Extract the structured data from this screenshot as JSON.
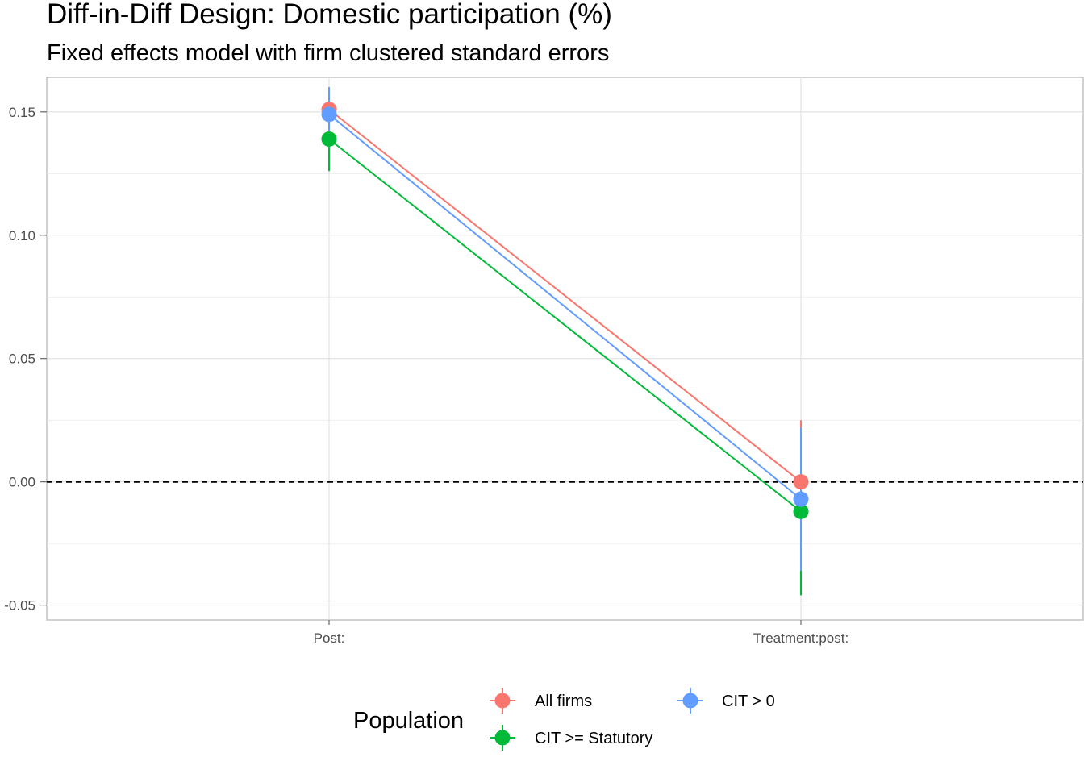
{
  "chart_data": {
    "type": "scatter",
    "title": "Diff-in-Diff Design: Domestic participation (%)",
    "subtitle": "Fixed effects model with firm clustered standard errors",
    "xlabel": "",
    "ylabel": "",
    "categories": [
      "Post:",
      "Treatment:post:"
    ],
    "ylim": [
      -0.056,
      0.164
    ],
    "yticks": [
      -0.05,
      0.0,
      0.05,
      0.1,
      0.15
    ],
    "ytick_labels": [
      "-0.05",
      "0.00",
      "0.05",
      "0.10",
      "0.15"
    ],
    "grid": true,
    "reference_line": {
      "y": 0,
      "style": "dashed",
      "color": "#000000"
    },
    "legend": {
      "title": "Population",
      "position": "bottom",
      "entries": [
        "All firms",
        "CIT > 0",
        "CIT >= Statutory"
      ]
    },
    "series": [
      {
        "name": "All firms",
        "color": "#F8766D",
        "values": [
          0.151,
          0.0
        ],
        "lower": [
          0.142,
          -0.025
        ],
        "upper": [
          0.16,
          0.025
        ]
      },
      {
        "name": "CIT > 0",
        "color": "#619CFF",
        "values": [
          0.149,
          -0.007
        ],
        "lower": [
          0.138,
          -0.036
        ],
        "upper": [
          0.16,
          0.022
        ]
      },
      {
        "name": "CIT >= Statutory",
        "color": "#00BA38",
        "values": [
          0.139,
          -0.012
        ],
        "lower": [
          0.126,
          -0.046
        ],
        "upper": [
          0.152,
          0.022
        ]
      }
    ]
  }
}
